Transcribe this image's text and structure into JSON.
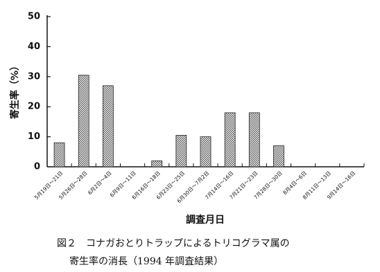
{
  "chart_data": {
    "type": "bar",
    "ylabel": "寄生率（%）",
    "xlabel": "調査月日",
    "caption": [
      "図２　コナガおとりトラップによるトリコグラマ属の",
      "寄生率の消長（1994 年調査結果）"
    ],
    "categories": [
      "5月19日～21日",
      "5月26日～28日",
      "6月2日～4日",
      "6月9日～11日",
      "6月16日～18日",
      "6月23日～25日",
      "6月30日～7月2日",
      "7月14日～16日",
      "7月21日～23日",
      "7月28日～30日",
      "8月4日～6日",
      "8月11日～13日",
      "9月14日～16日"
    ],
    "values": [
      8,
      30.5,
      27,
      0,
      2,
      10.5,
      10,
      18,
      18,
      7,
      0,
      0,
      0
    ],
    "color": "#555555",
    "ylim": [
      0,
      50
    ],
    "yticks": [
      0,
      10,
      20,
      30,
      40,
      50
    ]
  }
}
